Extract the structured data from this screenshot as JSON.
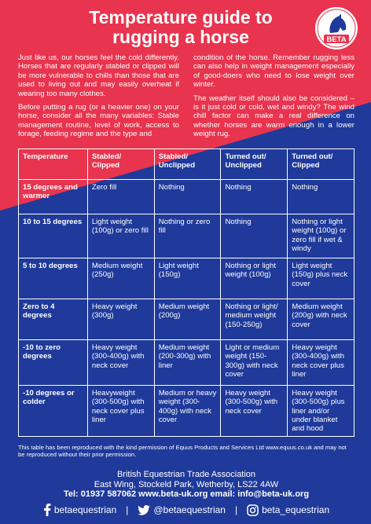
{
  "title_line1": "Temperature guide to",
  "title_line2": "rugging a horse",
  "logo": {
    "text": "BETA",
    "icon": "horse-head-logo-icon",
    "color": "#e8344e"
  },
  "intro_left": [
    "Just like us, our horses feel the cold differently. Horses that are regularly stabled or clipped will be more vulnerable to chills than those that are used to living out and may easily overheat if wearing too many clothes.",
    "Before putting a rug (or a heavier one) on your horse, consider all the many variables: Stable management routine, level of work, access to forage, feeding regime and the type and"
  ],
  "intro_right": [
    "condition of the horse. Remember rugging less can also help in weight management especially of good-doers who need to lose weight over winter.",
    "The weather itself should also be considered – is it just cold or cold, wet and windy? The wind chill factor can make a real difference on whether horses are warm enough in a lower weight rug."
  ],
  "table": {
    "headers": [
      "Temperature",
      "Stabled/\nClipped",
      "Stabled/\nUnclipped",
      "Turned out/\nUnclipped",
      "Turned out/\nClipped"
    ],
    "rows": [
      [
        "15 degrees and warmer",
        "Zero fill",
        "Nothing",
        "Nothing",
        "Nothing"
      ],
      [
        "10 to 15 degrees",
        "Light weight (100g) or zero fill",
        "Nothing or zero fill",
        "Nothing",
        "Nothing or light weight (100g) or zero fill if wet & windy"
      ],
      [
        "5 to 10 degrees",
        "Medium weight (250g)",
        "Light weight (150g)",
        "Nothing or light weight (100g)",
        "Light weight (150g) plus neck cover"
      ],
      [
        "Zero to 4 degrees",
        "Heavy weight (300g)",
        "Medium weight (200g)",
        " Nothing or light/ medium weight (150-250g)",
        "Medium weight (200g) with neck cover"
      ],
      [
        "-10 to zero degrees",
        "Heavy weight (300-400g) with neck cover",
        "Medium weight (200-300g) with liner",
        "Light or medium weight (150-300g) with neck cover",
        "Heavy weight (300-400g) with neck cover plus liner"
      ],
      [
        "-10 degrees or colder",
        "Heavyweight (300-500g) with neck cover plus liner",
        "Medium or heavy weight (300-400g) with neck cover",
        "Heavy weight (300-500g) with neck cover",
        "Heavy weight (300-500g) plus liner and/or under blanket and hood"
      ]
    ]
  },
  "permission": "This table has been reproduced with the kind permission of Equus Products and Services Ltd  www.equus.co.uk and may not be reproduced without their prior permission.",
  "address": {
    "org": "British Equestrian Trade Association",
    "line": "East Wing, Stockeld Park, Wetherby, LS22 4AW",
    "contact": "Tel: 01937 587062  www.beta-uk.org  email: info@beta-uk.org"
  },
  "social": {
    "facebook": "betaequestrian",
    "twitter": "@betaequestrian",
    "instagram": "beta_equestrian",
    "separator": "|"
  },
  "colors": {
    "red": "#e8344e",
    "blue": "#1f3a9a"
  }
}
